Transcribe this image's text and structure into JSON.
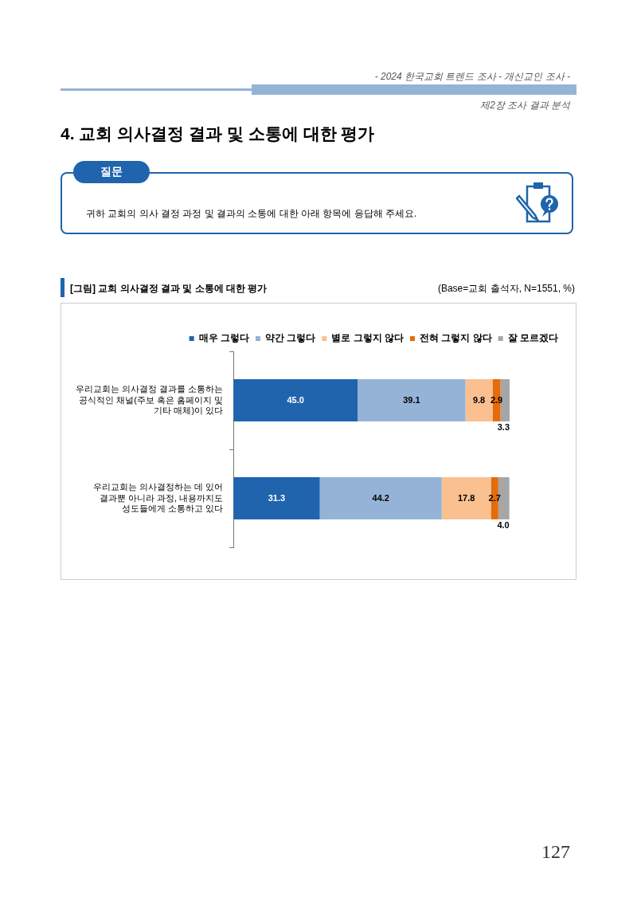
{
  "chart_data": {
    "type": "bar",
    "orientation": "horizontal",
    "stacked": true,
    "title": "[그림] 교회 의사결정 결과 및 소통에 대한 평가",
    "subtitle": "(Base=교회 출석자, N=1551, %)",
    "annotations": [
      "- 2024 한국교회 트렌드 조사 - 개신교인 조사 -",
      "제2장 조사 결과 분석",
      "4. 교회 의사결정 결과 및 소통에 대한 평가",
      "질문",
      "귀하 교회의 의사 결정 과정 및 결과의 소통에 대한 아래 항목에 응답해 주세요.",
      "127"
    ],
    "categories": [
      "우리교회는 의사결정 결과를 소통하는 공식적인 채널(주보 혹은 홈페이지 및 기타 매체)이 있다",
      "우리교회는 의사결정하는 데 있어 결과뿐 아니라 과정, 내용까지도 성도들에게 소통하고 있다"
    ],
    "series": [
      {
        "name": "매우 그렇다",
        "color": "#1f64ad",
        "values": [
          45.0,
          31.3
        ],
        "value_labels": [
          "45.0",
          "31.3"
        ]
      },
      {
        "name": "약간 그렇다",
        "color": "#95b3d7",
        "values": [
          39.1,
          44.2
        ],
        "value_labels": [
          "39.1",
          "44.2"
        ]
      },
      {
        "name": "별로 그렇지 않다",
        "color": "#fac090",
        "values": [
          9.8,
          17.8
        ],
        "value_labels": [
          "9.8",
          "17.8"
        ]
      },
      {
        "name": "전혀 그렇지 않다",
        "color": "#e46c0a",
        "values": [
          2.9,
          2.7
        ],
        "value_labels": [
          "2.9",
          "2.7"
        ]
      },
      {
        "name": "잘 모르겠다",
        "color": "#a6a6a6",
        "values": [
          3.3,
          4.0
        ],
        "value_labels": [
          "3.3",
          "4.0"
        ]
      }
    ],
    "legend": "top",
    "grid": false
  }
}
